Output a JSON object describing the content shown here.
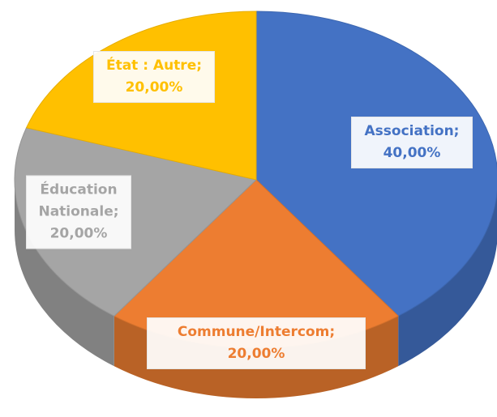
{
  "chart_data": {
    "type": "pie",
    "categories": [
      "Association;",
      "Commune/Intercom;",
      "Éducation Nationale;",
      "État : Autre;"
    ],
    "values": [
      40,
      20,
      20,
      20
    ],
    "value_labels": [
      "40,00%",
      "20,00%",
      "20,00%",
      "20,00%"
    ],
    "colors": [
      "#4472c4",
      "#ed7d31",
      "#a5a5a5",
      "#ffc000"
    ]
  }
}
